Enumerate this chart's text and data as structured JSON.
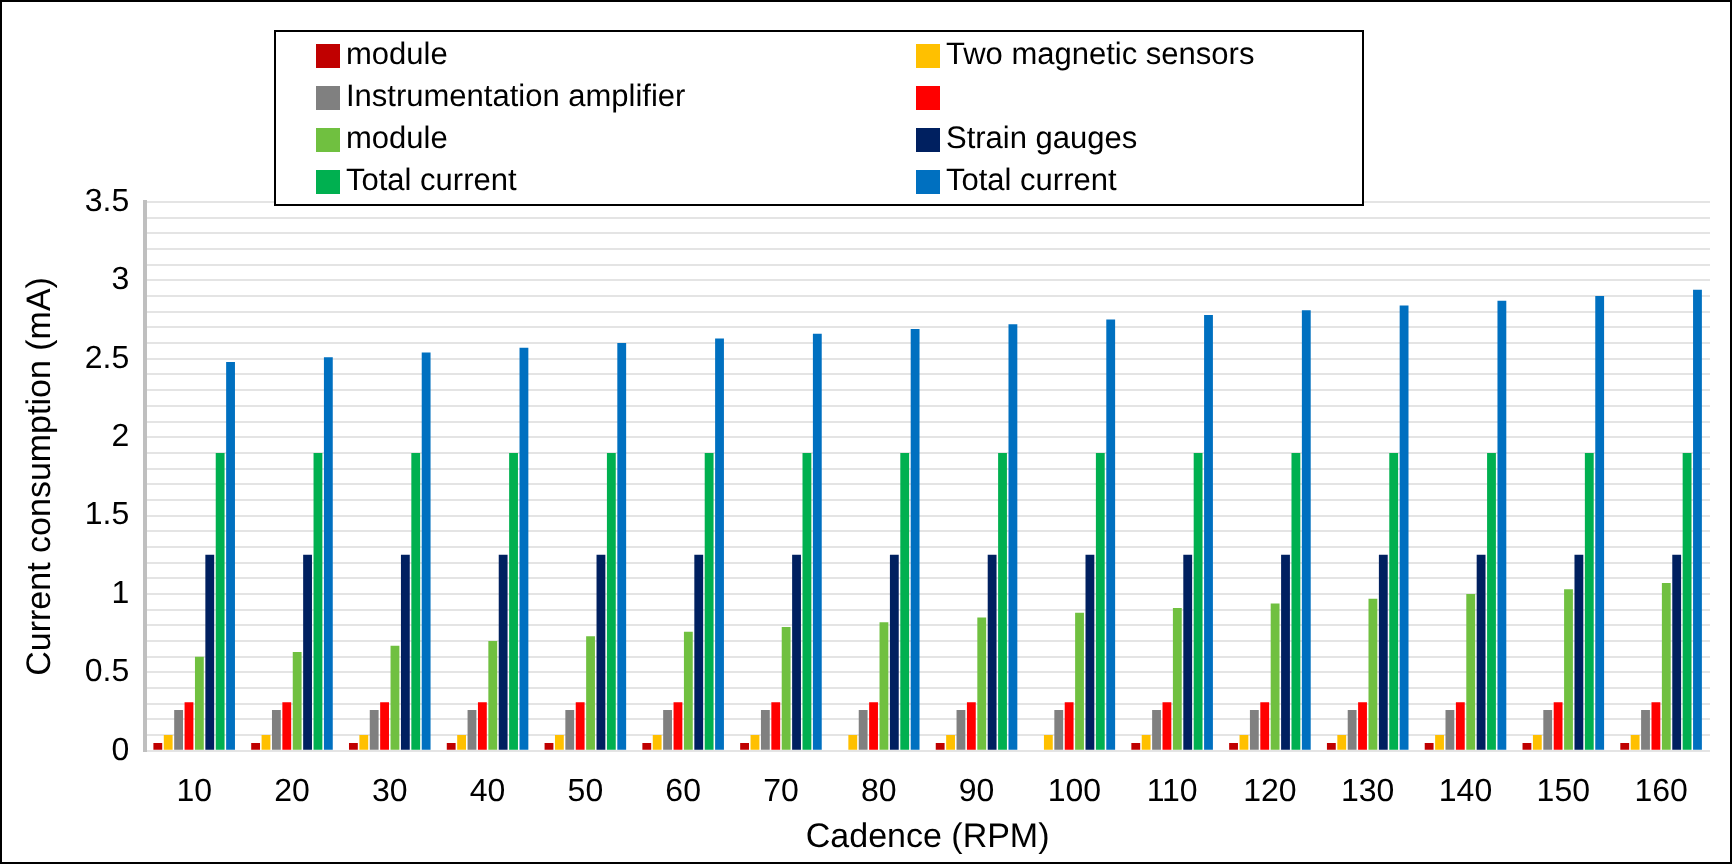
{
  "chart_data": {
    "type": "bar",
    "xlabel": "Cadence (RPM)",
    "ylabel": "Current consumption (mA)",
    "categories": [
      "10",
      "20",
      "30",
      "40",
      "50",
      "60",
      "70",
      "80",
      "90",
      "100",
      "110",
      "120",
      "130",
      "140",
      "150",
      "160"
    ],
    "series": [
      {
        "name": "module",
        "color": "#c00000",
        "values": [
          0.05,
          0.05,
          0.05,
          0.05,
          0.05,
          0.05,
          0.05,
          null,
          0.05,
          null,
          0.05,
          0.05,
          0.05,
          0.05,
          0.05,
          0.05
        ]
      },
      {
        "name": "Two magnetic sensors",
        "color": "#ffc000",
        "values": [
          0.1,
          0.1,
          0.1,
          0.1,
          0.1,
          0.1,
          0.1,
          0.1,
          0.1,
          0.1,
          0.1,
          0.1,
          0.1,
          0.1,
          0.1,
          0.1
        ]
      },
      {
        "name": "Instrumentation amplifier",
        "color": "#808080",
        "values": [
          0.26,
          0.26,
          0.26,
          0.26,
          0.26,
          0.26,
          0.26,
          0.26,
          0.26,
          0.26,
          0.26,
          0.26,
          0.26,
          0.26,
          0.26,
          0.26
        ]
      },
      {
        "color": "#ff0000",
        "values": [
          0.31,
          0.31,
          0.31,
          0.31,
          0.31,
          0.31,
          0.31,
          0.31,
          0.31,
          0.31,
          0.31,
          0.31,
          0.31,
          0.31,
          0.31,
          0.31
        ]
      },
      {
        "name": "module",
        "color": "#70c040",
        "values": [
          0.6,
          0.63,
          0.67,
          0.7,
          0.73,
          0.76,
          0.79,
          0.82,
          0.85,
          0.88,
          0.91,
          0.94,
          0.97,
          1.0,
          1.03,
          1.07
        ]
      },
      {
        "name": "Strain gauges",
        "color": "#002060",
        "values": [
          1.25,
          1.25,
          1.25,
          1.25,
          1.25,
          1.25,
          1.25,
          1.25,
          1.25,
          1.25,
          1.25,
          1.25,
          1.25,
          1.25,
          1.25,
          1.25
        ]
      },
      {
        "name": "Total current",
        "color": "#00b050",
        "values": [
          1.9,
          1.9,
          1.9,
          1.9,
          1.9,
          1.9,
          1.9,
          1.9,
          1.9,
          1.9,
          1.9,
          1.9,
          1.9,
          1.9,
          1.9,
          1.9
        ]
      },
      {
        "name": "Total current",
        "color": "#0070c0",
        "values": [
          2.48,
          2.51,
          2.54,
          2.57,
          2.6,
          2.63,
          2.66,
          2.69,
          2.72,
          2.75,
          2.78,
          2.81,
          2.84,
          2.87,
          2.9,
          2.94
        ]
      }
    ],
    "ylim": [
      0,
      3.5
    ],
    "yticks": [
      0,
      {
        "value": 0.1,
        "label": null
      },
      {
        "value": 0.2,
        "label": null
      },
      {
        "value": 0.3,
        "label": null
      },
      {
        "value": 0.4,
        "label": null
      },
      0.5,
      {
        "value": 0.6,
        "label": null
      },
      {
        "value": 0.7,
        "label": null
      },
      {
        "value": 0.8,
        "label": null
      },
      {
        "value": 0.9,
        "label": null
      },
      1,
      {
        "value": 1.1,
        "label": null
      },
      {
        "value": 1.2,
        "label": null
      },
      {
        "value": 1.3,
        "label": null
      },
      {
        "value": 1.4,
        "label": null
      },
      1.5,
      {
        "value": 1.6,
        "label": null
      },
      {
        "value": 1.7,
        "label": null
      },
      {
        "value": 1.8,
        "label": null
      },
      {
        "value": 1.9,
        "label": null
      },
      2,
      {
        "value": 2.1,
        "label": null
      },
      {
        "value": 2.2,
        "label": null
      },
      {
        "value": 2.3,
        "label": null
      },
      {
        "value": 2.4,
        "label": null
      },
      2.5,
      {
        "value": 2.6,
        "label": null
      },
      {
        "value": 2.7,
        "label": null
      },
      {
        "value": 2.8,
        "label": null
      },
      {
        "value": 2.9,
        "label": null
      },
      3,
      {
        "value": 3.1,
        "label": null
      },
      {
        "value": 3.2,
        "label": null
      },
      {
        "value": 3.3,
        "label": null
      },
      {
        "value": 3.4,
        "label": null
      },
      3.5
    ],
    "grid": "y",
    "legend": "top"
  }
}
